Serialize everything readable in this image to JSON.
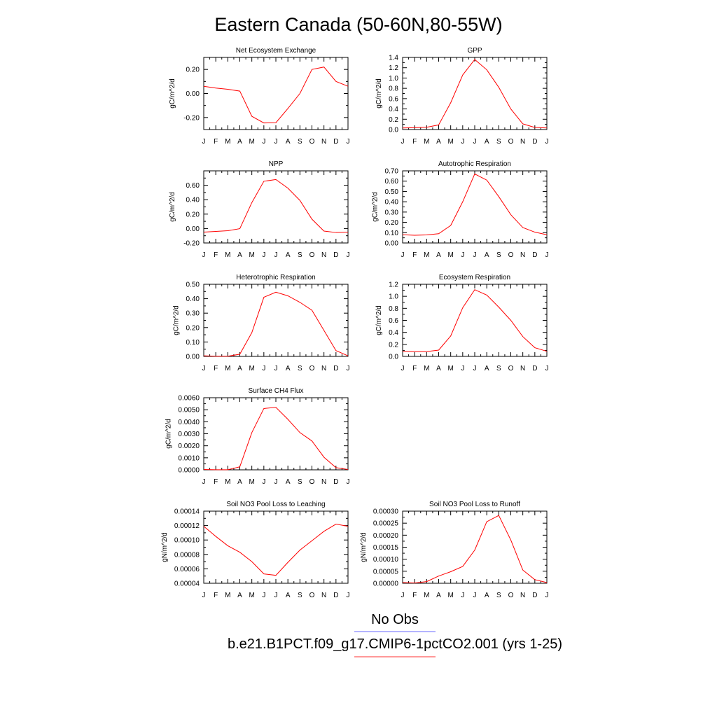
{
  "title": "Eastern Canada (50-60N,80-55W)",
  "legend": {
    "entries": [
      {
        "label": "No Obs",
        "color": "#6a6aff"
      },
      {
        "label": "b.e21.B1PCT.f09_g17.CMIP6-1pctCO2.001 (yrs 1-25)",
        "color": "#ff3030"
      }
    ]
  },
  "line_color": "#ff0000",
  "chart_data": [
    {
      "type": "line",
      "title": "Net Ecosystem Exchange",
      "ylabel": "gC/m^2/d",
      "x": [
        "J",
        "F",
        "M",
        "A",
        "M",
        "J",
        "J",
        "A",
        "S",
        "O",
        "N",
        "D",
        "J"
      ],
      "ylim": [
        -0.3,
        0.3
      ],
      "yticks": [
        "-0.20",
        "0.00",
        "0.20"
      ],
      "ytick_values": [
        -0.2,
        0.0,
        0.2
      ],
      "series": [
        {
          "values": [
            0.06,
            0.045,
            0.035,
            0.02,
            -0.19,
            -0.245,
            -0.243,
            -0.125,
            0.0,
            0.2,
            0.22,
            0.1,
            0.06
          ]
        }
      ]
    },
    {
      "type": "line",
      "title": "GPP",
      "ylabel": "gC/m^2/d",
      "x": [
        "J",
        "F",
        "M",
        "A",
        "M",
        "J",
        "J",
        "A",
        "S",
        "O",
        "N",
        "D",
        "J"
      ],
      "ylim": [
        0.0,
        1.4
      ],
      "yticks": [
        "0.0",
        "0.2",
        "0.4",
        "0.6",
        "0.8",
        "1.0",
        "1.2",
        "1.4"
      ],
      "ytick_values": [
        0.0,
        0.2,
        0.4,
        0.6,
        0.8,
        1.0,
        1.2,
        1.4
      ],
      "series": [
        {
          "values": [
            0.03,
            0.035,
            0.045,
            0.09,
            0.52,
            1.06,
            1.36,
            1.16,
            0.82,
            0.4,
            0.11,
            0.04,
            0.03
          ]
        }
      ]
    },
    {
      "type": "line",
      "title": "NPP",
      "ylabel": "gC/m^2/d",
      "x": [
        "J",
        "F",
        "M",
        "A",
        "M",
        "J",
        "J",
        "A",
        "S",
        "O",
        "N",
        "D",
        "J"
      ],
      "ylim": [
        -0.2,
        0.8
      ],
      "yticks": [
        "-0.20",
        "0.00",
        "0.20",
        "0.40",
        "0.60"
      ],
      "ytick_values": [
        -0.2,
        0.0,
        0.2,
        0.4,
        0.6
      ],
      "series": [
        {
          "values": [
            -0.05,
            -0.04,
            -0.03,
            -0.002,
            0.36,
            0.655,
            0.68,
            0.56,
            0.39,
            0.13,
            -0.035,
            -0.055,
            -0.05
          ]
        }
      ]
    },
    {
      "type": "line",
      "title": "Autotrophic Respiration",
      "ylabel": "gC/m^2/d",
      "x": [
        "J",
        "F",
        "M",
        "A",
        "M",
        "J",
        "J",
        "A",
        "S",
        "O",
        "N",
        "D",
        "J"
      ],
      "ylim": [
        0.0,
        0.7
      ],
      "yticks": [
        "0.00",
        "0.10",
        "0.20",
        "0.30",
        "0.40",
        "0.50",
        "0.60",
        "0.70"
      ],
      "ytick_values": [
        0.0,
        0.1,
        0.2,
        0.3,
        0.4,
        0.5,
        0.6,
        0.7
      ],
      "series": [
        {
          "values": [
            0.08,
            0.075,
            0.078,
            0.09,
            0.17,
            0.4,
            0.67,
            0.61,
            0.45,
            0.275,
            0.15,
            0.105,
            0.08
          ]
        }
      ]
    },
    {
      "type": "line",
      "title": "Heterotrophic Respiration",
      "ylabel": "gC/m^2/d",
      "x": [
        "J",
        "F",
        "M",
        "A",
        "M",
        "J",
        "J",
        "A",
        "S",
        "O",
        "N",
        "D",
        "J"
      ],
      "ylim": [
        0.0,
        0.5
      ],
      "yticks": [
        "0.00",
        "0.10",
        "0.20",
        "0.30",
        "0.40",
        "0.50"
      ],
      "ytick_values": [
        0.0,
        0.1,
        0.2,
        0.3,
        0.4,
        0.5
      ],
      "series": [
        {
          "values": [
            0.004,
            0.001,
            0.001,
            0.015,
            0.165,
            0.41,
            0.445,
            0.42,
            0.375,
            0.32,
            0.18,
            0.04,
            0.004
          ]
        }
      ]
    },
    {
      "type": "line",
      "title": "Ecosystem Respiration",
      "ylabel": "gC/m^2/d",
      "x": [
        "J",
        "F",
        "M",
        "A",
        "M",
        "J",
        "J",
        "A",
        "S",
        "O",
        "N",
        "D",
        "J"
      ],
      "ylim": [
        0.0,
        1.2
      ],
      "yticks": [
        "0.0",
        "0.2",
        "0.4",
        "0.6",
        "0.8",
        "1.0",
        "1.2"
      ],
      "ytick_values": [
        0.0,
        0.2,
        0.4,
        0.6,
        0.8,
        1.0,
        1.2
      ],
      "series": [
        {
          "values": [
            0.085,
            0.08,
            0.08,
            0.105,
            0.34,
            0.81,
            1.11,
            1.02,
            0.82,
            0.6,
            0.33,
            0.145,
            0.085
          ]
        }
      ]
    },
    {
      "type": "line",
      "title": "Surface CH4 Flux",
      "ylabel": "gC/m^2/d",
      "x": [
        "J",
        "F",
        "M",
        "A",
        "M",
        "J",
        "J",
        "A",
        "S",
        "O",
        "N",
        "D",
        "J"
      ],
      "ylim": [
        0.0,
        0.006
      ],
      "yticks": [
        "0.0000",
        "0.0010",
        "0.0020",
        "0.0030",
        "0.0040",
        "0.0050",
        "0.0060"
      ],
      "ytick_values": [
        0.0,
        0.001,
        0.002,
        0.003,
        0.004,
        0.005,
        0.006
      ],
      "series": [
        {
          "values": [
            3e-05,
            1e-05,
            1e-05,
            0.00025,
            0.0031,
            0.0051,
            0.0052,
            0.0042,
            0.0031,
            0.0024,
            0.00105,
            0.00018,
            3e-05
          ]
        }
      ]
    },
    {
      "type": "line",
      "title": "Soil NO3 Pool Loss to Leaching",
      "ylabel": "gN/m^2/d",
      "x": [
        "J",
        "F",
        "M",
        "A",
        "M",
        "J",
        "J",
        "A",
        "S",
        "O",
        "N",
        "D",
        "J"
      ],
      "ylim": [
        4e-05,
        0.00014
      ],
      "yticks": [
        "0.00004",
        "0.00006",
        "0.00008",
        "0.00010",
        "0.00012",
        "0.00014"
      ],
      "ytick_values": [
        4e-05,
        6e-05,
        8e-05,
        0.0001,
        0.00012,
        0.00014
      ],
      "series": [
        {
          "values": [
            0.000119,
            0.000105,
            9.2e-05,
            8.3e-05,
            7e-05,
            5.3e-05,
            5.1e-05,
            6.9e-05,
            8.6e-05,
            9.9e-05,
            0.000112,
            0.000122,
            0.000119
          ]
        }
      ]
    },
    {
      "type": "line",
      "title": "Soil NO3 Pool Loss to Runoff",
      "ylabel": "gN/m^2/d",
      "x": [
        "J",
        "F",
        "M",
        "A",
        "M",
        "J",
        "J",
        "A",
        "S",
        "O",
        "N",
        "D",
        "J"
      ],
      "ylim": [
        0.0,
        0.0003
      ],
      "yticks": [
        "0.00000",
        "0.00005",
        "0.00010",
        "0.00015",
        "0.00020",
        "0.00025",
        "0.00030"
      ],
      "ytick_values": [
        0.0,
        5e-05,
        0.0001,
        0.00015,
        0.0002,
        0.00025,
        0.0003
      ],
      "series": [
        {
          "values": [
            3e-06,
            1e-06,
            7e-06,
            3e-05,
            4.8e-05,
            7e-05,
            0.000138,
            0.000256,
            0.000282,
            0.00018,
            5.5e-05,
            1.5e-05,
            3e-06
          ]
        }
      ]
    }
  ]
}
